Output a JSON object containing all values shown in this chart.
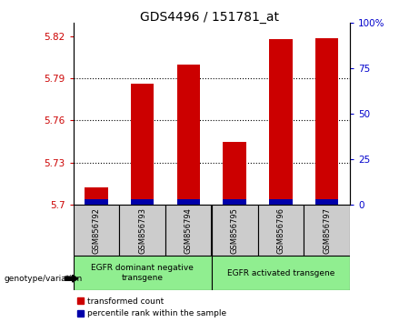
{
  "title": "GDS4496 / 151781_at",
  "samples": [
    "GSM856792",
    "GSM856793",
    "GSM856794",
    "GSM856795",
    "GSM856796",
    "GSM856797"
  ],
  "red_values": [
    5.712,
    5.786,
    5.8,
    5.745,
    5.818,
    5.819
  ],
  "blue_heights": [
    0.004,
    0.004,
    0.004,
    0.004,
    0.004,
    0.004
  ],
  "ylim": [
    5.7,
    5.83
  ],
  "yticks_left": [
    5.7,
    5.73,
    5.76,
    5.79,
    5.82
  ],
  "yticks_right": [
    0,
    25,
    50,
    75,
    100
  ],
  "yticks_right_labels": [
    "0",
    "25",
    "50",
    "75",
    "100%"
  ],
  "bar_bottom": 5.7,
  "group0_label": "EGFR dominant negative\ntransgene",
  "group1_label": "EGFR activated transgene",
  "group_color": "#90EE90",
  "legend_red_label": "transformed count",
  "legend_blue_label": "percentile rank within the sample",
  "genotype_label": "genotype/variation",
  "red_color": "#CC0000",
  "blue_color": "#0000AA",
  "bar_width": 0.5,
  "sample_box_color": "#CCCCCC",
  "grid_yticks": [
    5.73,
    5.76,
    5.79
  ]
}
